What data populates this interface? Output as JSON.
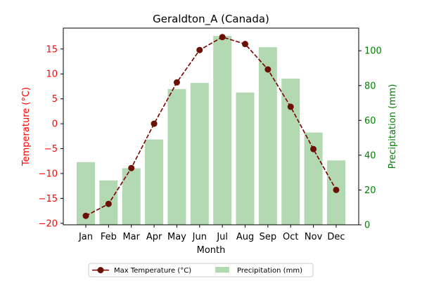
{
  "chart_data": {
    "type": "bar+line",
    "title": "Geraldton_A (Canada)",
    "xlabel": "Month",
    "ylabel_left": "Temperature (°C)",
    "ylabel_right": "Precipitation (mm)",
    "categories": [
      "Jan",
      "Feb",
      "Mar",
      "Apr",
      "May",
      "Jun",
      "Jul",
      "Aug",
      "Sep",
      "Oct",
      "Nov",
      "Dec"
    ],
    "ylim_left": [
      -20.3,
      19.2
    ],
    "ylim_right": [
      0,
      113
    ],
    "yticks_left": [
      -20,
      -15,
      -10,
      -5,
      0,
      5,
      10,
      15
    ],
    "yticks_right": [
      0,
      20,
      40,
      60,
      80,
      100
    ],
    "series": [
      {
        "name": "Max Temperature (°C)",
        "type": "line",
        "axis": "left",
        "color": "#7b0000",
        "marker_color": "#6a1005",
        "style": "dashed",
        "values": [
          -18.5,
          -16.1,
          -8.9,
          0.0,
          8.3,
          14.8,
          17.4,
          16.0,
          10.9,
          3.4,
          -5.1,
          -13.3
        ]
      },
      {
        "name": "Precipitation (mm)",
        "type": "bar",
        "axis": "right",
        "color": "#b2d9b2",
        "values": [
          36,
          25.5,
          32.5,
          49,
          78,
          81.5,
          108.5,
          76,
          102,
          84,
          53,
          37
        ]
      }
    ],
    "left_axis_color": "#ff0000",
    "right_axis_color": "#008000",
    "legend_position": "bottom-center",
    "grid": false
  }
}
